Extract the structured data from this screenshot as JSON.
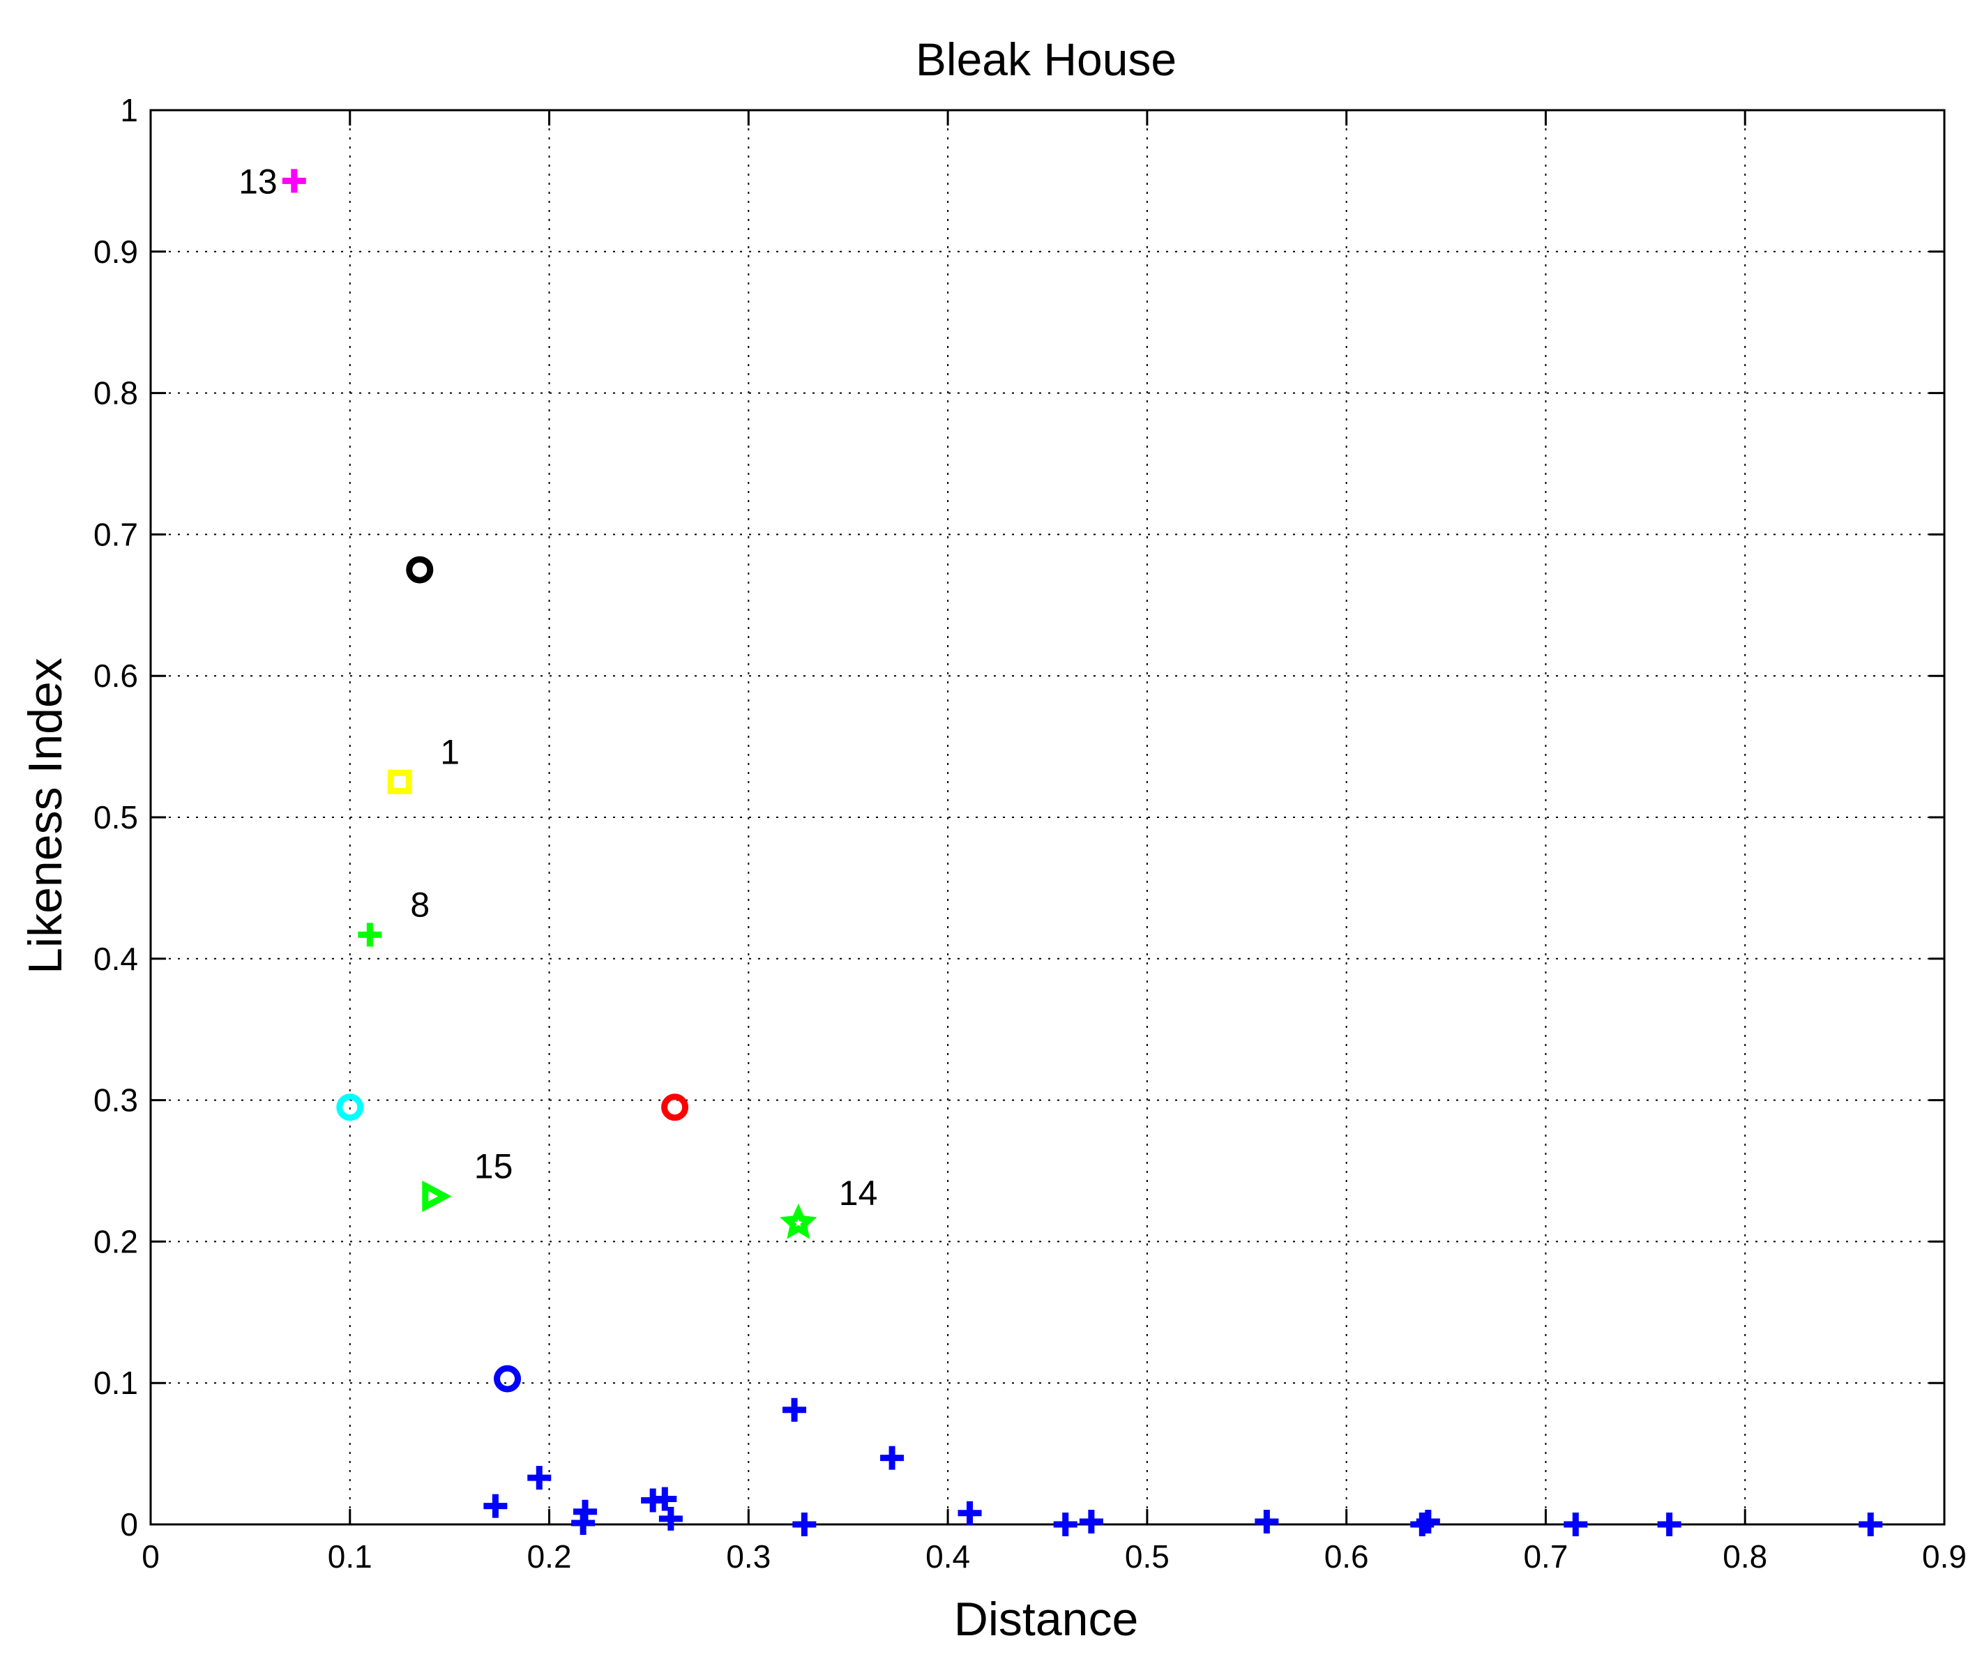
{
  "chart_data": {
    "type": "scatter",
    "title": "Bleak House",
    "xlabel": "Distance",
    "ylabel": "Likeness Index",
    "xlim": [
      0,
      0.9
    ],
    "ylim": [
      0,
      1
    ],
    "xticks": [
      "0",
      "0.1",
      "0.2",
      "0.3",
      "0.4",
      "0.5",
      "0.6",
      "0.7",
      "0.8",
      "0.9"
    ],
    "yticks": [
      "0",
      "0.1",
      "0.2",
      "0.3",
      "0.4",
      "0.5",
      "0.6",
      "0.7",
      "0.8",
      "0.9",
      "1"
    ],
    "grid": true,
    "points": [
      {
        "x": 0.072,
        "y": 0.95,
        "marker": "plus",
        "color": "#ff00ff",
        "label": "13"
      },
      {
        "x": 0.135,
        "y": 0.675,
        "marker": "circle",
        "color": "#000000"
      },
      {
        "x": 0.125,
        "y": 0.525,
        "marker": "square",
        "color": "#ffff00",
        "label": "1"
      },
      {
        "x": 0.11,
        "y": 0.417,
        "marker": "plus",
        "color": "#00ff00",
        "label": "8"
      },
      {
        "x": 0.1,
        "y": 0.295,
        "marker": "circle",
        "color": "#00ffff"
      },
      {
        "x": 0.263,
        "y": 0.295,
        "marker": "circle",
        "color": "#ff0000"
      },
      {
        "x": 0.142,
        "y": 0.232,
        "marker": "triangle-right",
        "color": "#00ff00",
        "label": "15"
      },
      {
        "x": 0.325,
        "y": 0.213,
        "marker": "star",
        "color": "#00ff00",
        "label": "14"
      },
      {
        "x": 0.179,
        "y": 0.103,
        "marker": "circle",
        "color": "#0000ff"
      },
      {
        "x": 0.323,
        "y": 0.081,
        "marker": "plus",
        "color": "#0000ff"
      },
      {
        "x": 0.372,
        "y": 0.047,
        "marker": "plus",
        "color": "#0000ff"
      },
      {
        "x": 0.195,
        "y": 0.033,
        "marker": "plus",
        "color": "#0000ff"
      },
      {
        "x": 0.173,
        "y": 0.013,
        "marker": "plus",
        "color": "#0000ff"
      },
      {
        "x": 0.218,
        "y": 0.009,
        "marker": "plus",
        "color": "#0000ff"
      },
      {
        "x": 0.217,
        "y": 0.001,
        "marker": "plus",
        "color": "#0000ff"
      },
      {
        "x": 0.252,
        "y": 0.017,
        "marker": "plus",
        "color": "#0000ff"
      },
      {
        "x": 0.258,
        "y": 0.018,
        "marker": "plus",
        "color": "#0000ff"
      },
      {
        "x": 0.261,
        "y": 0.004,
        "marker": "plus",
        "color": "#0000ff"
      },
      {
        "x": 0.328,
        "y": 0.0,
        "marker": "plus",
        "color": "#0000ff"
      },
      {
        "x": 0.411,
        "y": 0.008,
        "marker": "plus",
        "color": "#0000ff"
      },
      {
        "x": 0.459,
        "y": 0.0,
        "marker": "plus",
        "color": "#0000ff"
      },
      {
        "x": 0.472,
        "y": 0.002,
        "marker": "plus",
        "color": "#0000ff"
      },
      {
        "x": 0.56,
        "y": 0.002,
        "marker": "plus",
        "color": "#0000ff"
      },
      {
        "x": 0.638,
        "y": 0.0,
        "marker": "plus",
        "color": "#0000ff"
      },
      {
        "x": 0.641,
        "y": 0.002,
        "marker": "plus",
        "color": "#0000ff"
      },
      {
        "x": 0.715,
        "y": 0.0,
        "marker": "plus",
        "color": "#0000ff"
      },
      {
        "x": 0.762,
        "y": 0.0,
        "marker": "plus",
        "color": "#0000ff"
      },
      {
        "x": 0.863,
        "y": 0.0,
        "marker": "plus",
        "color": "#0000ff"
      }
    ]
  }
}
